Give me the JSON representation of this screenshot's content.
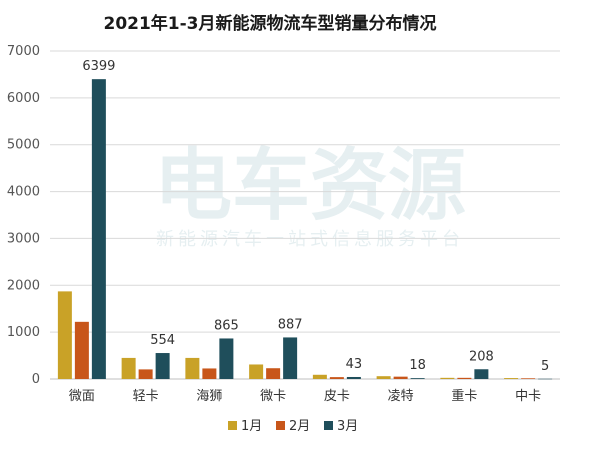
{
  "chart_data": {
    "type": "bar",
    "title": "2021年1-3月新能源物流车型销量分布情况",
    "xlabel": "",
    "ylabel": "",
    "ylim": [
      0,
      7000
    ],
    "yticks": [
      0,
      1000,
      2000,
      3000,
      4000,
      5000,
      6000,
      7000
    ],
    "grid": true,
    "legend_position": "bottom",
    "categories": [
      "微面",
      "轻卡",
      "海狮",
      "微卡",
      "皮卡",
      "凌特",
      "重卡",
      "中卡"
    ],
    "series": [
      {
        "name": "1月",
        "color": "#c9a227",
        "values": [
          1870,
          450,
          450,
          310,
          90,
          60,
          25,
          20
        ]
      },
      {
        "name": "2月",
        "color": "#c8561a",
        "values": [
          1220,
          205,
          225,
          230,
          40,
          50,
          25,
          15
        ]
      },
      {
        "name": "3月",
        "color": "#1f4e5b",
        "values": [
          6399,
          554,
          865,
          887,
          43,
          18,
          208,
          5
        ],
        "labels_shown": true
      }
    ]
  },
  "watermark": {
    "main": "电车资源",
    "sub": "新能源汽车一站式信息服务平台"
  },
  "colors": {
    "grid": "#d9d9d9",
    "axis": "#bfbfbf"
  }
}
